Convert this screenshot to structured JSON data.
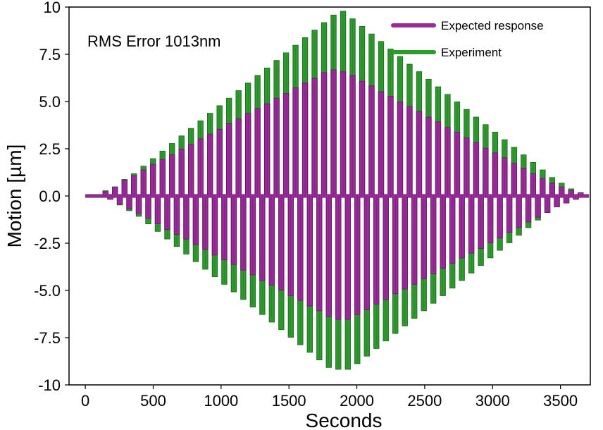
{
  "chart_data": {
    "type": "line",
    "title": "",
    "xlabel": "Seconds",
    "ylabel": "Motion [µm]",
    "xlim": [
      -120,
      3720
    ],
    "ylim": [
      -10,
      10
    ],
    "x_ticks": [
      0,
      500,
      1000,
      1500,
      2000,
      2500,
      3000,
      3500
    ],
    "x_tick_labels": [
      "0",
      "500",
      "1000",
      "1500",
      "2000",
      "2500",
      "3000",
      "3500"
    ],
    "y_ticks": [
      10,
      7.5,
      5,
      2.5,
      0,
      -2.5,
      -5,
      -7.5,
      -10
    ],
    "y_tick_labels": [
      "10",
      "7.5",
      "5.0",
      "2.5",
      "0.0",
      "-2.5",
      "-5.0",
      "-7.5",
      "-10"
    ],
    "grid": false,
    "legend_position": "top-right",
    "annotation": "RMS Error 1013nm",
    "series": [
      {
        "name": "Experiment",
        "color": "#2e9a2e",
        "pulse_period_s": 70,
        "pulse_start_times": [
          140,
          210,
          280,
          350,
          420,
          490,
          560,
          630,
          700,
          770,
          840,
          910,
          980,
          1050,
          1120,
          1190,
          1260,
          1330,
          1400,
          1470,
          1540,
          1610,
          1680,
          1750,
          1820,
          1890,
          1960,
          2030,
          2100,
          2170,
          2240,
          2310,
          2380,
          2450,
          2520,
          2590,
          2660,
          2730,
          2800,
          2870,
          2940,
          3010,
          3080,
          3150,
          3220,
          3290,
          3360,
          3430,
          3500,
          3570,
          3640
        ],
        "positive_peaks": [
          0.2,
          0.4,
          0.8,
          1.1,
          1.5,
          1.9,
          2.3,
          2.7,
          3.1,
          3.5,
          3.9,
          4.3,
          4.7,
          5.1,
          5.5,
          5.9,
          6.3,
          6.7,
          7.1,
          7.5,
          7.9,
          8.3,
          8.7,
          9.1,
          9.5,
          9.7,
          9.3,
          8.9,
          8.5,
          8.1,
          7.7,
          7.3,
          6.9,
          6.5,
          6.1,
          5.7,
          5.3,
          4.9,
          4.5,
          4.1,
          3.7,
          3.3,
          2.9,
          2.5,
          2.1,
          1.7,
          1.3,
          0.9,
          0.6,
          0.3,
          0.1
        ],
        "negative_peaks": [
          -0.1,
          -0.4,
          -0.7,
          -1.0,
          -1.4,
          -1.8,
          -2.2,
          -2.6,
          -3.0,
          -3.4,
          -3.8,
          -4.2,
          -4.6,
          -5.0,
          -5.4,
          -5.8,
          -6.2,
          -6.6,
          -7.0,
          -7.4,
          -7.8,
          -8.2,
          -8.6,
          -9.0,
          -9.1,
          -9.1,
          -8.8,
          -8.4,
          -8.0,
          -7.6,
          -7.2,
          -6.8,
          -6.4,
          -6.0,
          -5.6,
          -5.2,
          -4.8,
          -4.4,
          -4.0,
          -3.6,
          -3.2,
          -2.8,
          -2.4,
          -2.0,
          -1.6,
          -1.2,
          -0.8,
          -0.5,
          -0.3,
          -0.1,
          0.0
        ]
      },
      {
        "name": "Expected response",
        "color": "#9a2a9a",
        "pulse_period_s": 70,
        "pulse_start_times": [
          140,
          210,
          280,
          350,
          420,
          490,
          560,
          630,
          700,
          770,
          840,
          910,
          980,
          1050,
          1120,
          1190,
          1260,
          1330,
          1400,
          1470,
          1540,
          1610,
          1680,
          1750,
          1820,
          1890,
          1960,
          2030,
          2100,
          2170,
          2240,
          2310,
          2380,
          2450,
          2520,
          2590,
          2660,
          2730,
          2800,
          2870,
          2940,
          3010,
          3080,
          3150,
          3220,
          3290,
          3360,
          3430,
          3500,
          3570,
          3640
        ],
        "positive_peaks": [
          0.15,
          0.4,
          0.75,
          1.0,
          1.3,
          1.6,
          1.85,
          2.1,
          2.4,
          2.65,
          2.95,
          3.2,
          3.45,
          3.75,
          4.0,
          4.3,
          4.55,
          4.8,
          5.1,
          5.35,
          5.65,
          5.9,
          6.15,
          6.45,
          6.6,
          6.5,
          6.3,
          6.0,
          5.75,
          5.45,
          5.2,
          4.9,
          4.65,
          4.4,
          4.1,
          3.85,
          3.55,
          3.3,
          3.0,
          2.75,
          2.45,
          2.2,
          1.95,
          1.65,
          1.4,
          1.1,
          0.85,
          0.6,
          0.4,
          0.2,
          0.1
        ],
        "negative_peaks": [
          -0.1,
          -0.35,
          -0.6,
          -0.85,
          -1.1,
          -1.4,
          -1.7,
          -1.95,
          -2.2,
          -2.5,
          -2.75,
          -3.05,
          -3.3,
          -3.55,
          -3.85,
          -4.1,
          -4.4,
          -4.65,
          -4.9,
          -5.2,
          -5.45,
          -5.75,
          -6.0,
          -6.3,
          -6.45,
          -6.45,
          -6.2,
          -5.95,
          -5.65,
          -5.4,
          -5.1,
          -4.85,
          -4.6,
          -4.3,
          -4.05,
          -3.75,
          -3.5,
          -3.2,
          -2.95,
          -2.7,
          -2.4,
          -2.15,
          -1.85,
          -1.6,
          -1.3,
          -1.05,
          -0.8,
          -0.5,
          -0.3,
          -0.1,
          0.0
        ]
      }
    ]
  }
}
